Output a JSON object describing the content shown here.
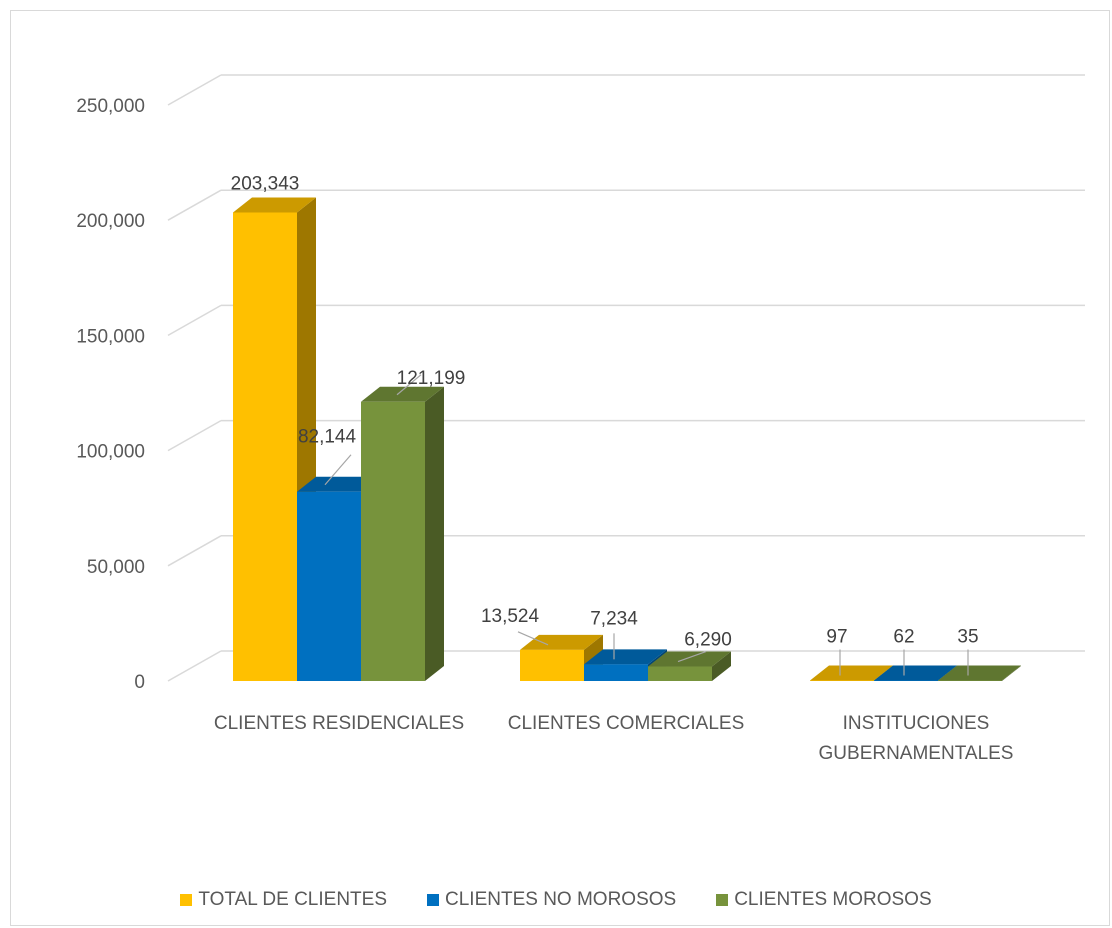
{
  "chart_data": {
    "type": "bar",
    "title": "",
    "xlabel": "",
    "ylabel": "",
    "ylim": [
      0,
      250000
    ],
    "yticks": [
      "0",
      "50,000",
      "100,000",
      "150,000",
      "200,000",
      "250,000"
    ],
    "ytick_values": [
      0,
      50000,
      100000,
      150000,
      200000,
      250000
    ],
    "grid": true,
    "legend_position": "bottom",
    "three_d": true,
    "categories": [
      "CLIENTES RESIDENCIALES",
      "CLIENTES COMERCIALES",
      "INSTITUCIONES GUBERNAMENTALES"
    ],
    "series": [
      {
        "name": "TOTAL DE CLIENTES",
        "values": [
          203343,
          13524,
          97
        ],
        "labels": [
          "203,343",
          "13,524",
          "97"
        ],
        "color": "#FFC000"
      },
      {
        "name": "CLIENTES NO MOROSOS",
        "values": [
          82144,
          7234,
          62
        ],
        "labels": [
          "82,144",
          "7,234",
          "62"
        ],
        "color": "#0070C0"
      },
      {
        "name": "CLIENTES MOROSOS",
        "values": [
          121199,
          6290,
          35
        ],
        "labels": [
          "121,199",
          "6,290",
          "35"
        ],
        "color": "#77933C"
      }
    ]
  }
}
